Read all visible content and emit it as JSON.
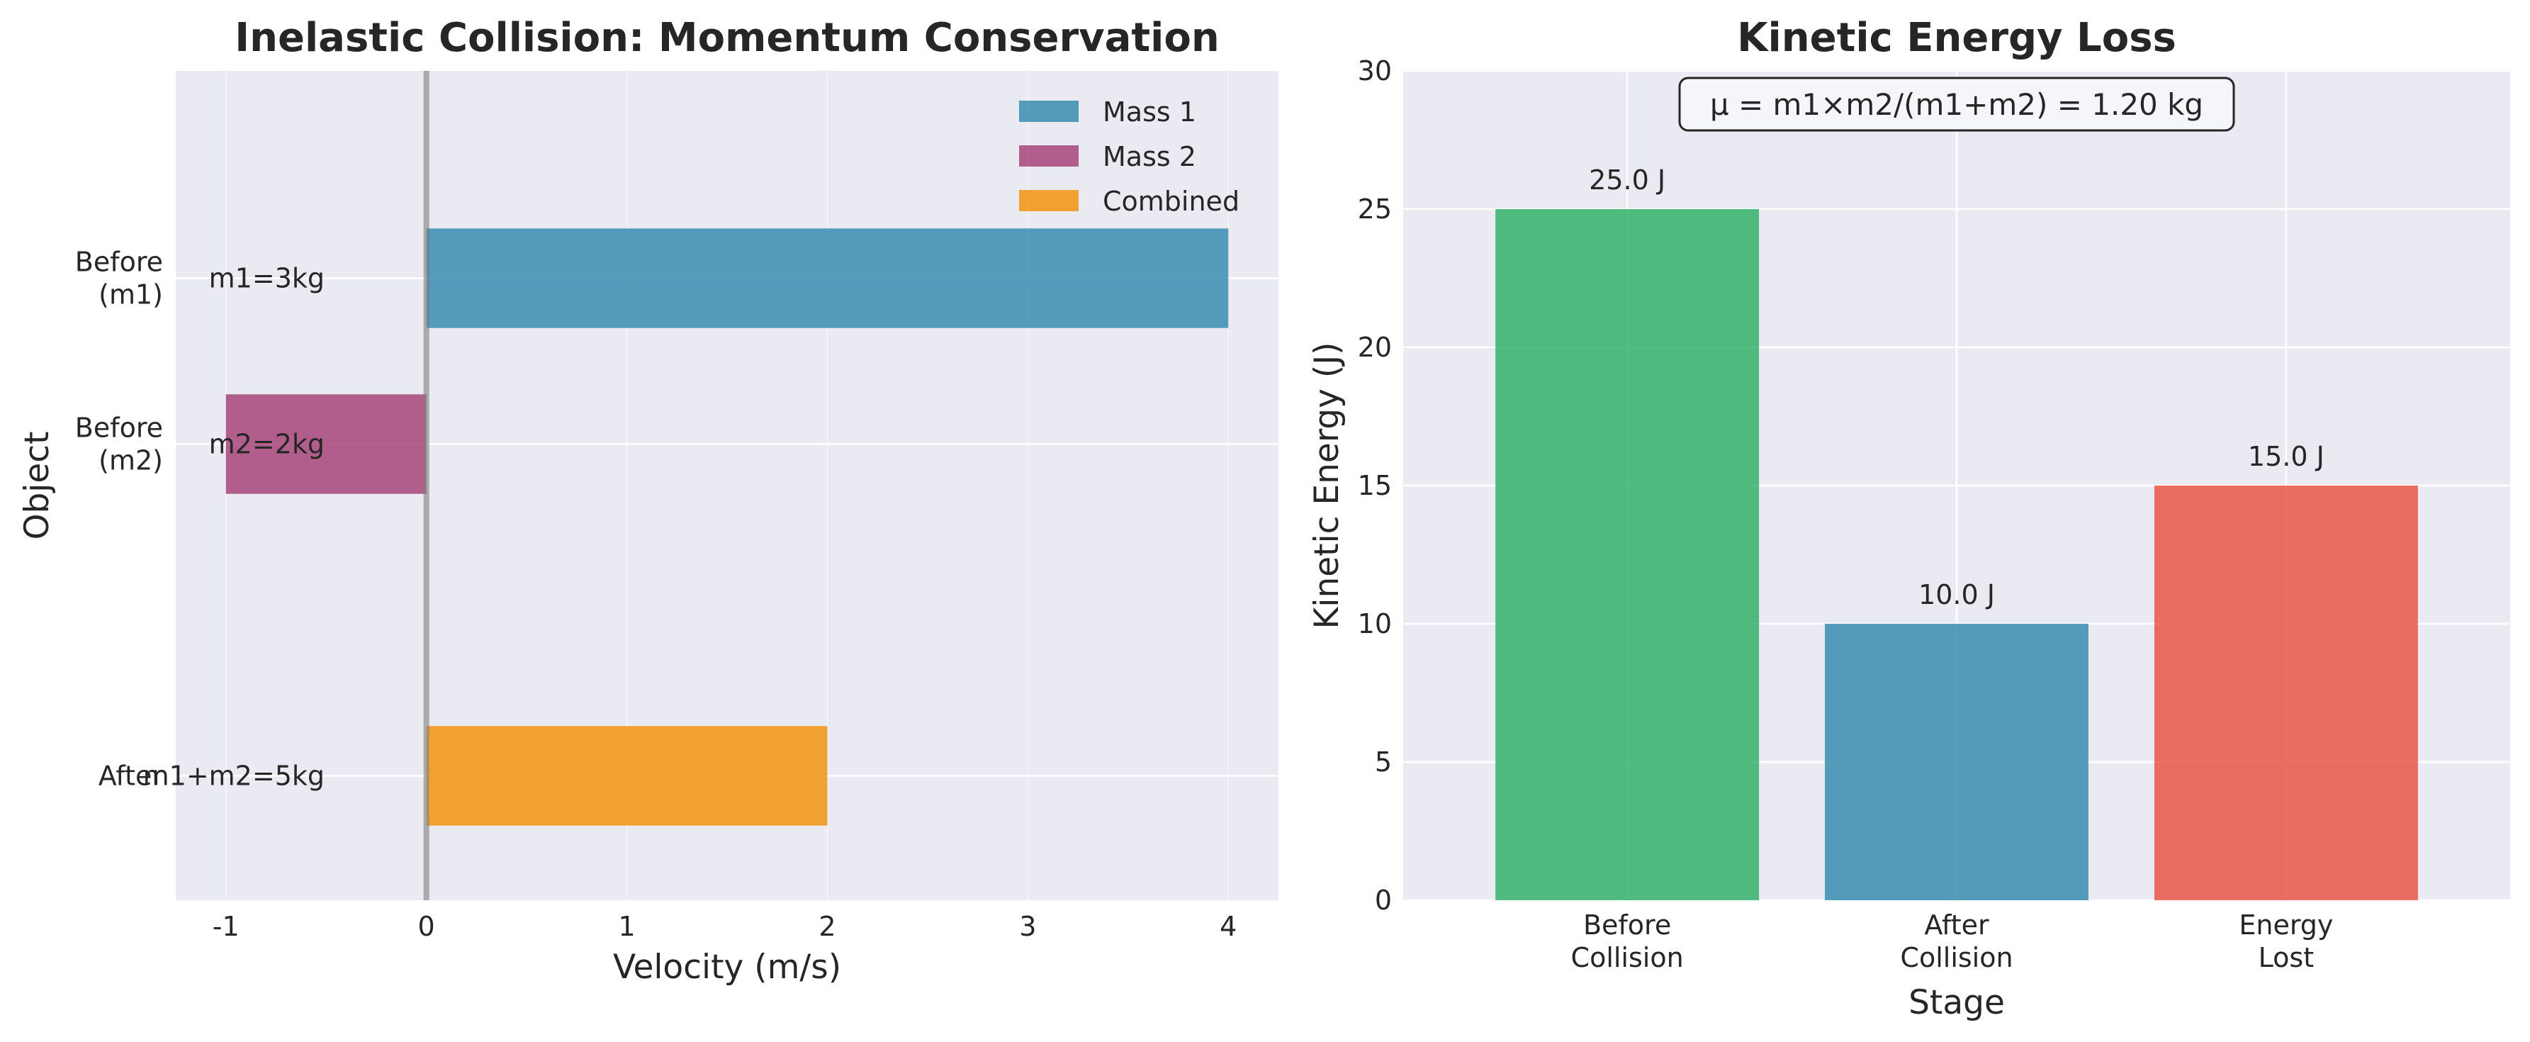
{
  "chart_data": [
    {
      "type": "bar",
      "orientation": "horizontal",
      "title": "Inelastic Collision: Momentum Conservation",
      "xlabel": "Velocity (m/s)",
      "ylabel": "Object",
      "xlim": [
        -1.25,
        4.25
      ],
      "ylim": [
        -3.0,
        1.0
      ],
      "xticks": [
        "-1",
        "0",
        "1",
        "2",
        "3",
        "4"
      ],
      "grid": true,
      "legend_position": "top-right",
      "categories": [
        {
          "label": "Before\n(m1)",
          "y": 0
        },
        {
          "label": "Before\n(m2)",
          "y": -0.8
        },
        {
          "label": "After",
          "y": -2.4
        }
      ],
      "series": [
        {
          "name": "Mass 1",
          "color": "#2e86ab",
          "y": 0,
          "value": 4,
          "annotation": "m1=3kg"
        },
        {
          "name": "Mass 2",
          "color": "#a23b72",
          "y": -0.8,
          "value": -1,
          "annotation": "m2=2kg"
        },
        {
          "name": "Combined",
          "color": "#f18f01",
          "y": -2.4,
          "value": 2,
          "annotation": "m1+m2=5kg"
        }
      ]
    },
    {
      "type": "bar",
      "title": "Kinetic Energy Loss",
      "xlabel": "Stage",
      "ylabel": "Kinetic Energy (J)",
      "ylim": [
        0,
        30
      ],
      "yticks": [
        "0",
        "5",
        "10",
        "15",
        "20",
        "25",
        "30"
      ],
      "grid": true,
      "categories": [
        "Before\nCollision",
        "After\nCollision",
        "Energy\nLost"
      ],
      "values": [
        25.0,
        10.0,
        15.0
      ],
      "value_labels": [
        "25.0 J",
        "10.0 J",
        "15.0 J"
      ],
      "colors": [
        "#27ae60",
        "#2e86ab",
        "#e74c3c"
      ],
      "annotation": "μ = m1×m2/(m1+m2) = 1.20 kg"
    }
  ]
}
